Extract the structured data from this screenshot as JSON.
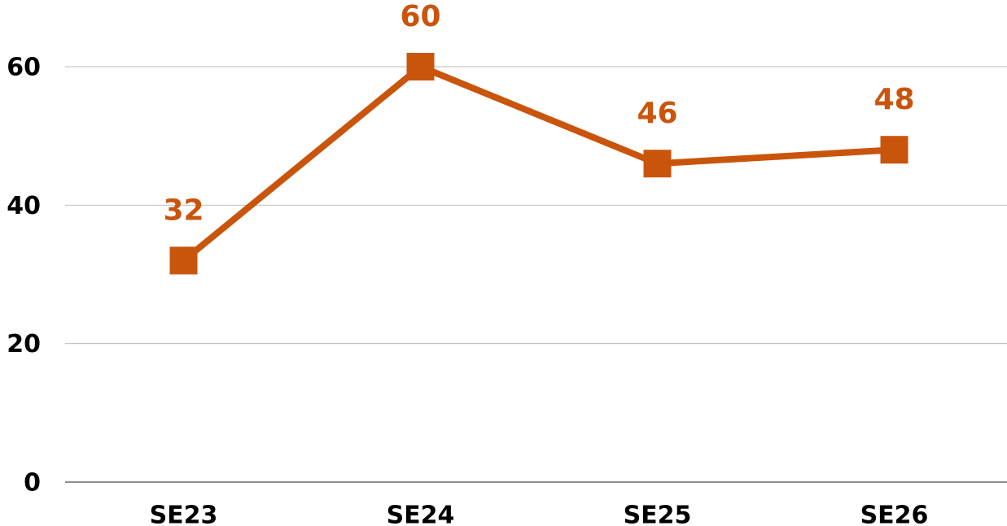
{
  "chart_data": {
    "type": "line",
    "categories": [
      "SE23",
      "SE24",
      "SE25",
      "SE26"
    ],
    "series": [
      {
        "name": null,
        "color": "#c9550c",
        "values": [
          32,
          60,
          46,
          48
        ]
      }
    ],
    "ylim": [
      0,
      60
    ],
    "yticks": [
      0,
      20,
      40,
      60
    ],
    "grid": true
  }
}
